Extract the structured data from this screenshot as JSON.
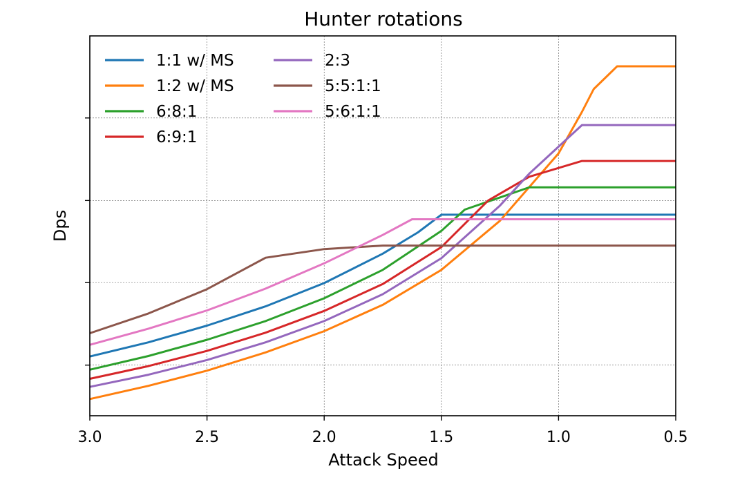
{
  "chart_data": {
    "type": "line",
    "title": "Hunter rotations",
    "xlabel": "Attack Speed",
    "ylabel": "Dps",
    "xlim": [
      3.0,
      0.5
    ],
    "x_inverted": true,
    "xticks": [
      "3.0",
      "2.5",
      "2.0",
      "1.5",
      "1.0",
      "0.5"
    ],
    "y_tick_labels_shown": false,
    "grid": true,
    "legend_position": "top-left",
    "series": [
      {
        "name": "1:1 w/ MS",
        "color": "#1f77b4",
        "x": [
          3.0,
          2.75,
          2.5,
          2.25,
          2.0,
          1.75,
          1.6,
          1.5,
          0.5
        ],
        "y": [
          117,
          145,
          178,
          216,
          262,
          320,
          362,
          397,
          397
        ]
      },
      {
        "name": "1:2 w/ MS",
        "color": "#ff7f0e",
        "x": [
          3.0,
          2.75,
          2.5,
          2.25,
          2.0,
          1.75,
          1.5,
          1.25,
          1.0,
          0.9,
          0.85,
          0.75,
          0.5
        ],
        "y": [
          33,
          59,
          89,
          125,
          167,
          219,
          288,
          385,
          518,
          600,
          645,
          690,
          690
        ]
      },
      {
        "name": "6:8:1",
        "color": "#2ca02c",
        "x": [
          3.0,
          2.75,
          2.5,
          2.25,
          2.0,
          1.75,
          1.5,
          1.4,
          1.25,
          1.125,
          0.5
        ],
        "y": [
          91,
          118,
          150,
          187,
          232,
          288,
          365,
          407,
          431,
          451,
          451
        ]
      },
      {
        "name": "6:9:1",
        "color": "#d62728",
        "x": [
          3.0,
          2.75,
          2.5,
          2.25,
          2.0,
          1.75,
          1.5,
          1.3,
          1.125,
          0.9,
          0.5
        ],
        "y": [
          73,
          98,
          128,
          164,
          207,
          260,
          333,
          425,
          472,
          503,
          503
        ]
      },
      {
        "name": "2:3",
        "color": "#9467bd",
        "x": [
          3.0,
          2.75,
          2.5,
          2.25,
          2.0,
          1.75,
          1.5,
          1.25,
          1.125,
          0.9,
          0.5
        ],
        "y": [
          57,
          81,
          110,
          145,
          187,
          240,
          311,
          415,
          478,
          574,
          574
        ]
      },
      {
        "name": "5:5:1:1",
        "color": "#8c564b",
        "x": [
          3.0,
          2.75,
          2.5,
          2.25,
          2.0,
          1.75,
          0.5
        ],
        "y": [
          163,
          202,
          250,
          312,
          329,
          336,
          336
        ]
      },
      {
        "name": "5:6:1:1",
        "color": "#e377c2",
        "x": [
          3.0,
          2.75,
          2.5,
          2.25,
          2.0,
          1.75,
          1.625,
          0.5
        ],
        "y": [
          140,
          172,
          208,
          251,
          301,
          357,
          388,
          388
        ]
      }
    ]
  }
}
